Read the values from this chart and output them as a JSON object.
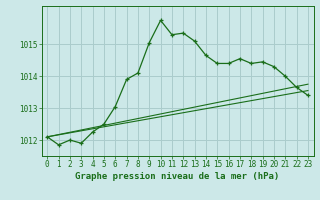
{
  "title": "Graphe pression niveau de la mer (hPa)",
  "background_color": "#cce8e8",
  "grid_color": "#aacccc",
  "line_color": "#1a6e1a",
  "xlim": [
    -0.5,
    23.5
  ],
  "ylim": [
    1011.5,
    1016.2
  ],
  "yticks": [
    1012,
    1013,
    1014,
    1015
  ],
  "xticks": [
    0,
    1,
    2,
    3,
    4,
    5,
    6,
    7,
    8,
    9,
    10,
    11,
    12,
    13,
    14,
    15,
    16,
    17,
    18,
    19,
    20,
    21,
    22,
    23
  ],
  "series1_x": [
    0,
    1,
    2,
    3,
    4,
    5,
    6,
    7,
    8,
    9,
    10,
    11,
    12,
    13,
    14,
    15,
    16,
    17,
    18,
    19,
    20,
    21,
    22,
    23
  ],
  "series1_y": [
    1012.1,
    1011.85,
    1012.0,
    1011.9,
    1012.25,
    1012.5,
    1013.05,
    1013.9,
    1014.1,
    1015.05,
    1015.75,
    1015.3,
    1015.35,
    1015.1,
    1014.65,
    1014.4,
    1014.4,
    1014.55,
    1014.4,
    1014.45,
    1014.3,
    1014.0,
    1013.65,
    1013.4
  ],
  "line2_x": [
    0,
    23
  ],
  "line2_y": [
    1012.1,
    1013.75
  ],
  "line3_x": [
    0,
    23
  ],
  "line3_y": [
    1012.1,
    1013.55
  ],
  "title_fontsize": 6.5,
  "tick_fontsize": 5.5
}
